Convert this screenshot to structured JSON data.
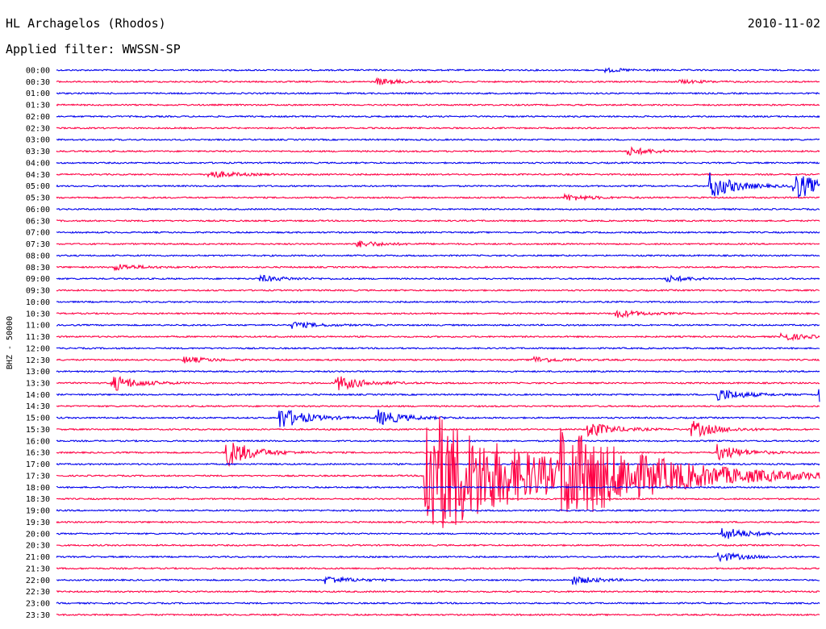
{
  "header": {
    "station": "HL Archagelos (Rhodos)",
    "filter": "Applied filter: WWSSN-SP",
    "date": "2010-11-02"
  },
  "colors": {
    "even": "#0000ee",
    "odd": "#ff0044",
    "text": "#000000"
  },
  "chart_data": {
    "type": "helicorder",
    "ylabel": "BHZ - 50000",
    "categories": [
      "00:00",
      "00:30",
      "01:00",
      "01:30",
      "02:00",
      "02:30",
      "03:00",
      "03:30",
      "04:00",
      "04:30",
      "05:00",
      "05:30",
      "06:00",
      "06:30",
      "07:00",
      "07:30",
      "08:00",
      "08:30",
      "09:00",
      "09:30",
      "10:00",
      "10:30",
      "11:00",
      "11:30",
      "12:00",
      "12:30",
      "13:00",
      "13:30",
      "14:00",
      "14:30",
      "15:00",
      "15:30",
      "16:00",
      "16:30",
      "17:00",
      "17:30",
      "18:00",
      "18:30",
      "19:00",
      "19:30",
      "20:00",
      "20:30",
      "21:00",
      "21:30",
      "22:00",
      "22:30",
      "23:00",
      "23:30"
    ],
    "x_range_minutes": [
      0,
      30
    ],
    "series_colors": [
      "even-row",
      "odd-row"
    ],
    "events": [
      {
        "row": "00:00",
        "minute": 21.6,
        "amp": 2
      },
      {
        "row": "00:30",
        "minute": 12.6,
        "amp": 4
      },
      {
        "row": "00:30",
        "minute": 24.5,
        "amp": 2
      },
      {
        "row": "03:30",
        "minute": 22.5,
        "amp": 5
      },
      {
        "row": "04:30",
        "minute": 6.0,
        "amp": 5
      },
      {
        "row": "05:00",
        "minute": 25.7,
        "amp": 16
      },
      {
        "row": "05:00",
        "minute": 29.0,
        "amp": 18
      },
      {
        "row": "05:30",
        "minute": 20.0,
        "amp": 4
      },
      {
        "row": "07:30",
        "minute": 11.8,
        "amp": 4
      },
      {
        "row": "08:30",
        "minute": 2.3,
        "amp": 4
      },
      {
        "row": "09:00",
        "minute": 8.0,
        "amp": 4
      },
      {
        "row": "09:00",
        "minute": 24.0,
        "amp": 4
      },
      {
        "row": "10:30",
        "minute": 22.0,
        "amp": 5
      },
      {
        "row": "11:00",
        "minute": 9.3,
        "amp": 4
      },
      {
        "row": "11:30",
        "minute": 28.5,
        "amp": 5
      },
      {
        "row": "12:30",
        "minute": 5.0,
        "amp": 4
      },
      {
        "row": "12:30",
        "minute": 18.7,
        "amp": 4
      },
      {
        "row": "13:30",
        "minute": 2.2,
        "amp": 10
      },
      {
        "row": "13:30",
        "minute": 11.0,
        "amp": 10
      },
      {
        "row": "14:00",
        "minute": 26.0,
        "amp": 8
      },
      {
        "row": "14:00",
        "minute": 30.0,
        "amp": 10
      },
      {
        "row": "15:00",
        "minute": 8.8,
        "amp": 14
      },
      {
        "row": "15:00",
        "minute": 12.6,
        "amp": 10
      },
      {
        "row": "15:30",
        "minute": 20.9,
        "amp": 10
      },
      {
        "row": "15:30",
        "minute": 25.0,
        "amp": 10
      },
      {
        "row": "16:30",
        "minute": 6.7,
        "amp": 18
      },
      {
        "row": "16:30",
        "minute": 26.0,
        "amp": 10
      },
      {
        "row": "17:30",
        "minute": 14.5,
        "amp": 90
      },
      {
        "row": "17:30",
        "minute": 19.8,
        "amp": 45
      },
      {
        "row": "20:00",
        "minute": 26.2,
        "amp": 8
      },
      {
        "row": "21:00",
        "minute": 26.0,
        "amp": 6
      },
      {
        "row": "22:00",
        "minute": 10.6,
        "amp": 5
      },
      {
        "row": "22:00",
        "minute": 20.3,
        "amp": 5
      }
    ]
  }
}
